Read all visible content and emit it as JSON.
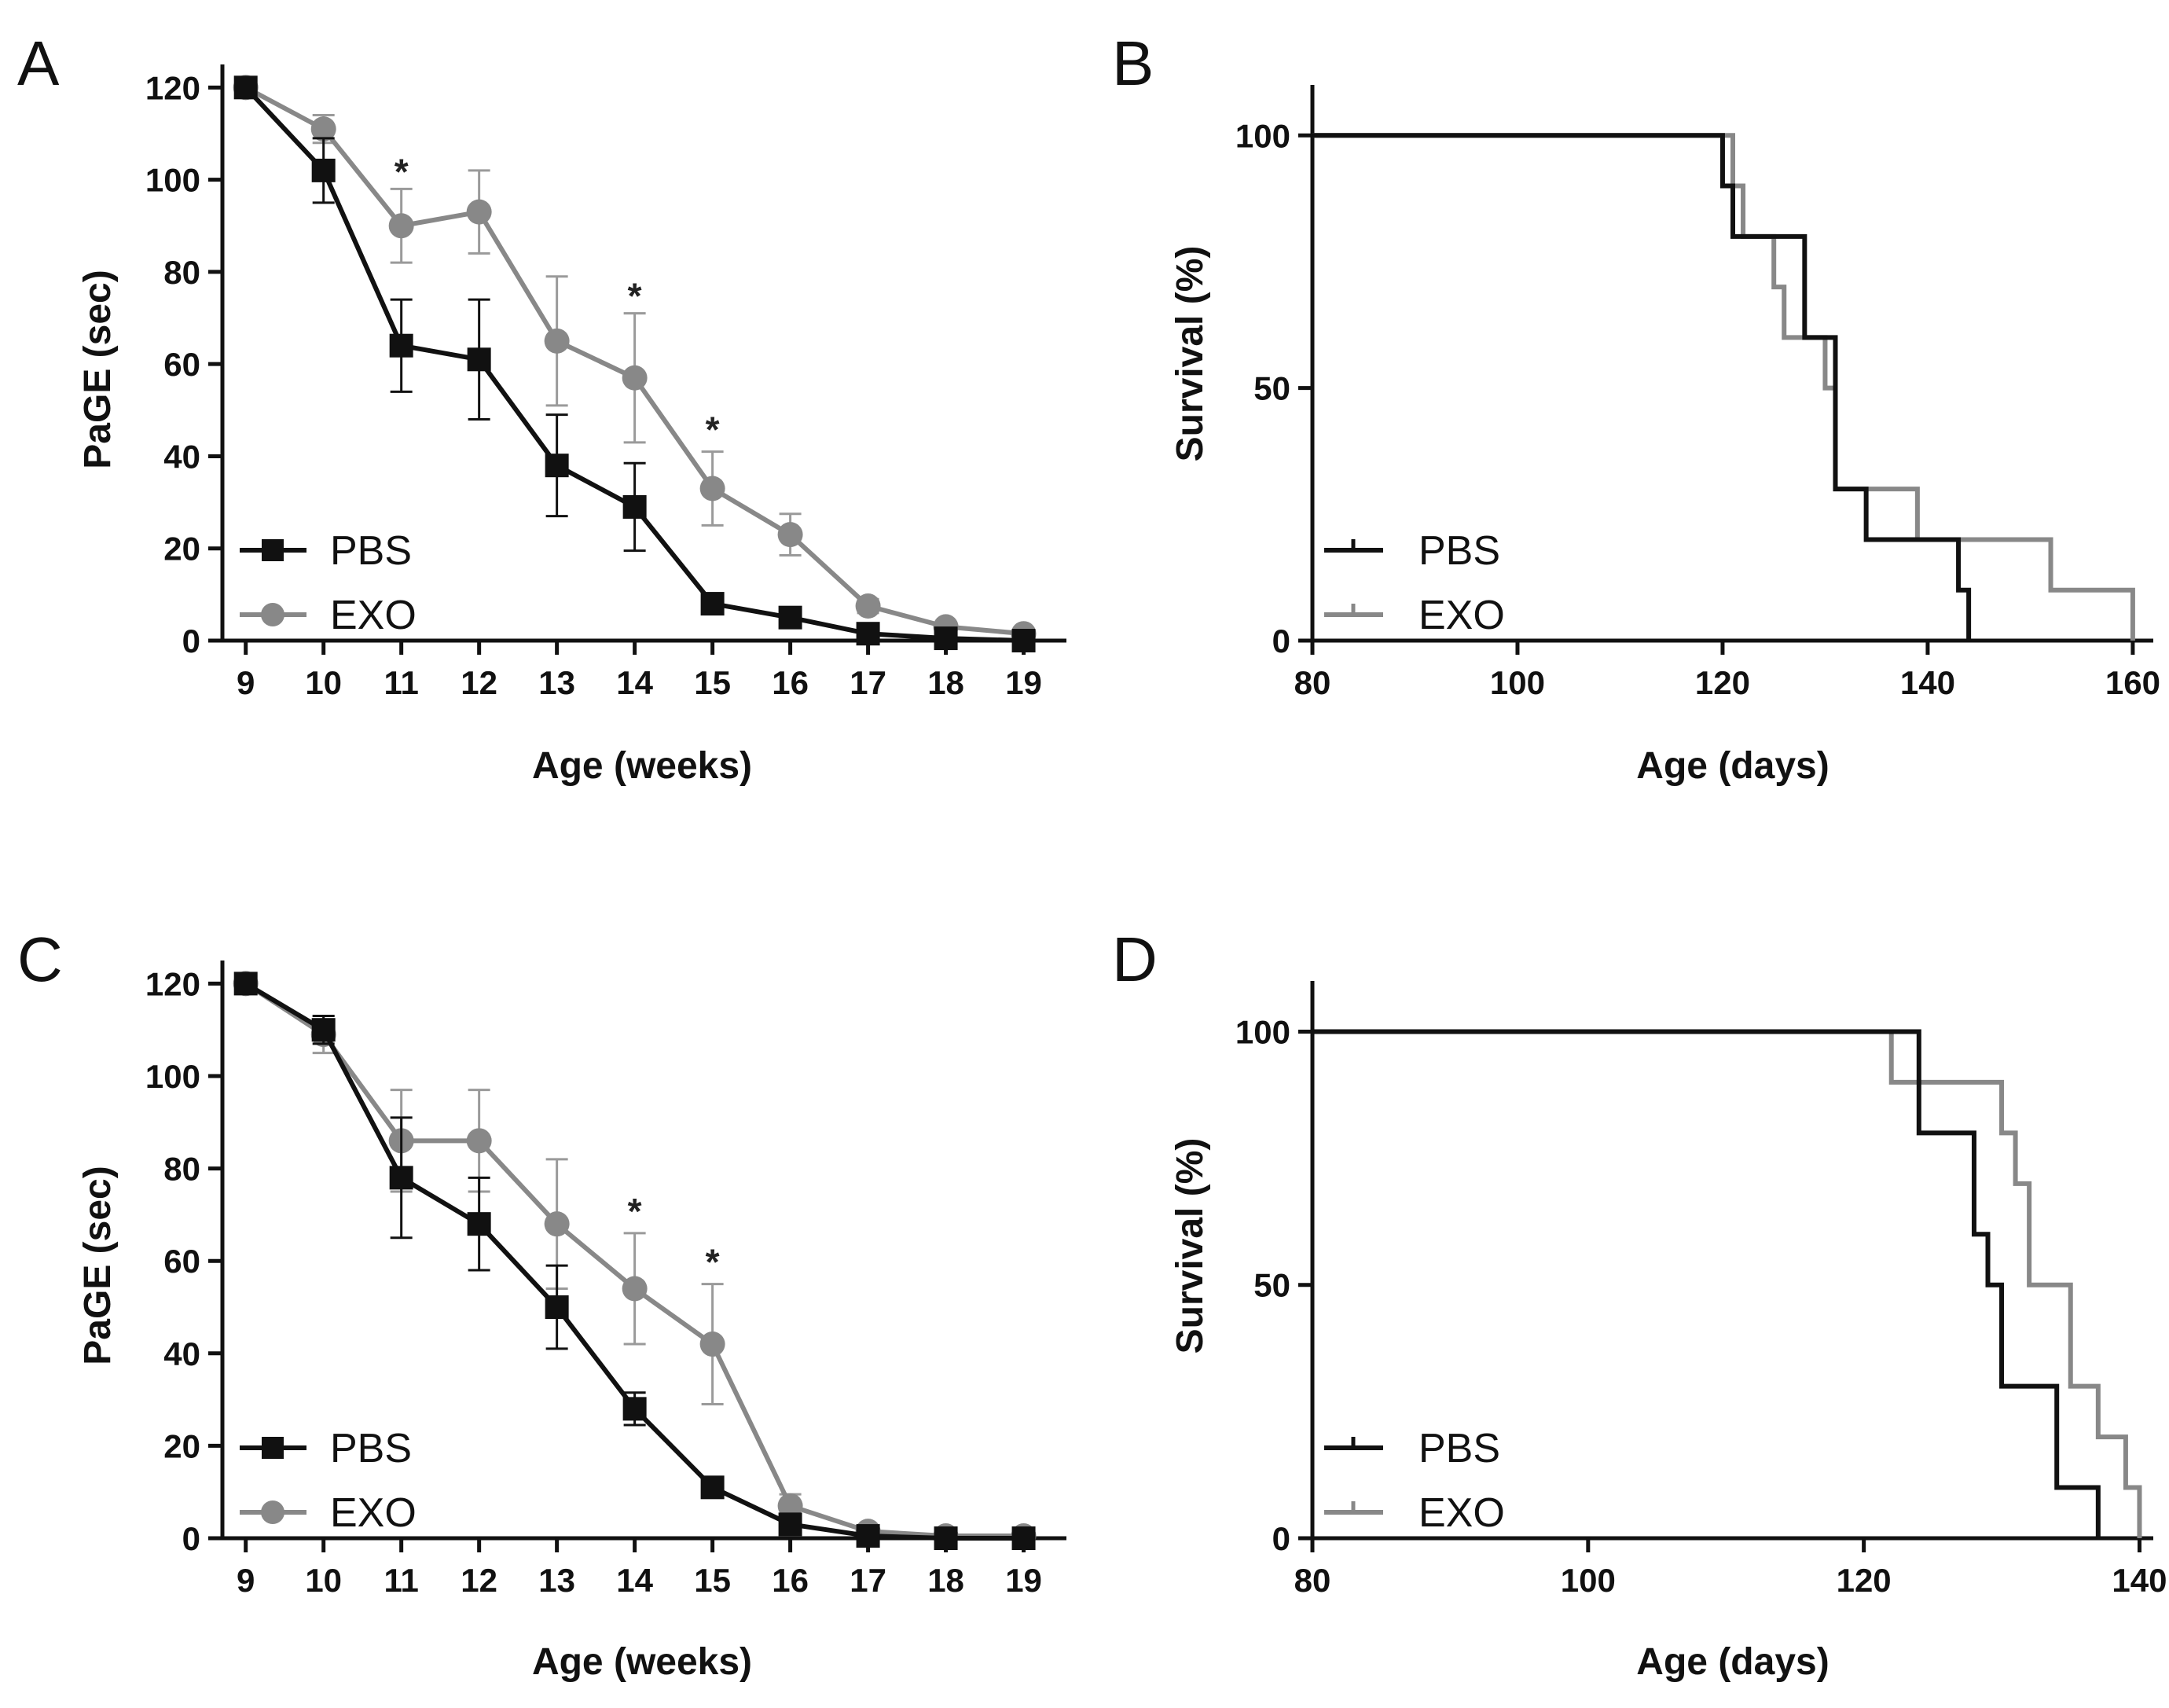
{
  "colors": {
    "pbs": "#111111",
    "exo": "#888888",
    "exo_error": "#9a9a9a",
    "axis": "#111111"
  },
  "chart_data": [
    {
      "id": "A",
      "panel_label": "A",
      "type": "line",
      "xlabel": "Age (weeks)",
      "ylabel": "PaGE (sec)",
      "xlim": [
        8.7,
        19.55
      ],
      "ylim": [
        0,
        125
      ],
      "xticks": [
        9,
        10,
        11,
        12,
        13,
        14,
        15,
        16,
        17,
        18,
        19
      ],
      "yticks": [
        0,
        20,
        40,
        60,
        80,
        100,
        120
      ],
      "legend_position": "bottom-left",
      "x": [
        9,
        10,
        11,
        12,
        13,
        14,
        15,
        16,
        17,
        18,
        19
      ],
      "series": [
        {
          "name": "PBS",
          "marker": "square",
          "color_key": "pbs",
          "values": [
            120,
            102,
            64,
            61,
            38,
            29,
            8,
            5,
            1.5,
            0.5,
            0
          ],
          "errors": [
            0,
            7,
            10,
            13,
            11,
            9.5,
            1.5,
            1.5,
            0.8,
            0.5,
            0.5
          ]
        },
        {
          "name": "EXO",
          "marker": "circle",
          "color_key": "exo",
          "values": [
            120,
            111,
            90,
            93,
            65,
            57,
            33,
            23,
            7.5,
            3,
            1.5
          ],
          "errors": [
            0,
            3,
            8,
            9,
            14,
            14,
            8,
            4.5,
            1.5,
            1,
            0.5
          ]
        }
      ],
      "annotations": [
        {
          "x": 11,
          "y": 98,
          "text": "*"
        },
        {
          "x": 14,
          "y": 71,
          "text": "*"
        },
        {
          "x": 15,
          "y": 42,
          "text": "*"
        }
      ]
    },
    {
      "id": "B",
      "panel_label": "B",
      "type": "line",
      "subtype": "kaplan-meier",
      "xlabel": "Age (days)",
      "ylabel": "Survival (%)",
      "xlim": [
        80,
        162
      ],
      "ylim": [
        0,
        110
      ],
      "xticks": [
        80,
        100,
        120,
        140,
        160
      ],
      "yticks": [
        0,
        50,
        100
      ],
      "legend_position": "bottom-left",
      "series": [
        {
          "name": "PBS",
          "color_key": "pbs",
          "x": [
            80,
            120,
            121,
            128,
            131,
            134,
            143,
            144
          ],
          "y": [
            100,
            90,
            80,
            60,
            30,
            20,
            10,
            0
          ]
        },
        {
          "name": "EXO",
          "color_key": "exo",
          "x": [
            80,
            121,
            122,
            125,
            126,
            130,
            131,
            134,
            139,
            152,
            160
          ],
          "y": [
            100,
            90,
            80,
            70,
            60,
            50,
            30,
            30,
            20,
            10,
            0
          ]
        }
      ]
    },
    {
      "id": "C",
      "panel_label": "C",
      "type": "line",
      "xlabel": "Age (weeks)",
      "ylabel": "PaGE (sec)",
      "xlim": [
        8.7,
        19.55
      ],
      "ylim": [
        0,
        125
      ],
      "xticks": [
        9,
        10,
        11,
        12,
        13,
        14,
        15,
        16,
        17,
        18,
        19
      ],
      "yticks": [
        0,
        20,
        40,
        60,
        80,
        100,
        120
      ],
      "legend_position": "bottom-left",
      "x": [
        9,
        10,
        11,
        12,
        13,
        14,
        15,
        16,
        17,
        18,
        19
      ],
      "series": [
        {
          "name": "PBS",
          "marker": "square",
          "color_key": "pbs",
          "values": [
            120,
            110,
            78,
            68,
            50,
            28,
            11,
            3,
            0.5,
            0,
            0
          ],
          "errors": [
            0,
            3,
            13,
            10,
            9,
            3.5,
            1.5,
            1,
            0.5,
            0.3,
            0.3
          ]
        },
        {
          "name": "EXO",
          "marker": "circle",
          "color_key": "exo",
          "values": [
            120,
            109,
            86,
            86,
            68,
            54,
            42,
            7,
            1.5,
            0.5,
            0.5
          ],
          "errors": [
            0,
            4,
            11,
            11,
            14,
            12,
            13,
            2.5,
            1,
            0.5,
            0.5
          ]
        }
      ],
      "annotations": [
        {
          "x": 14,
          "y": 67,
          "text": "*"
        },
        {
          "x": 15,
          "y": 56,
          "text": "*"
        }
      ]
    },
    {
      "id": "D",
      "panel_label": "D",
      "type": "line",
      "subtype": "kaplan-meier",
      "xlabel": "Age (days)",
      "ylabel": "Survival (%)",
      "xlim": [
        80,
        141
      ],
      "ylim": [
        0,
        110
      ],
      "xticks": [
        80,
        100,
        120,
        140
      ],
      "yticks": [
        0,
        50,
        100
      ],
      "legend_position": "bottom-left",
      "series": [
        {
          "name": "PBS",
          "color_key": "pbs",
          "x": [
            80,
            124,
            126,
            128,
            129,
            130,
            134,
            137
          ],
          "y": [
            100,
            80,
            80,
            60,
            50,
            30,
            10,
            0
          ]
        },
        {
          "name": "EXO",
          "color_key": "exo",
          "x": [
            80,
            122,
            123,
            130,
            131,
            132,
            135,
            137,
            139,
            140
          ],
          "y": [
            100,
            90,
            90,
            80,
            70,
            50,
            30,
            20,
            10,
            0
          ]
        }
      ]
    }
  ]
}
